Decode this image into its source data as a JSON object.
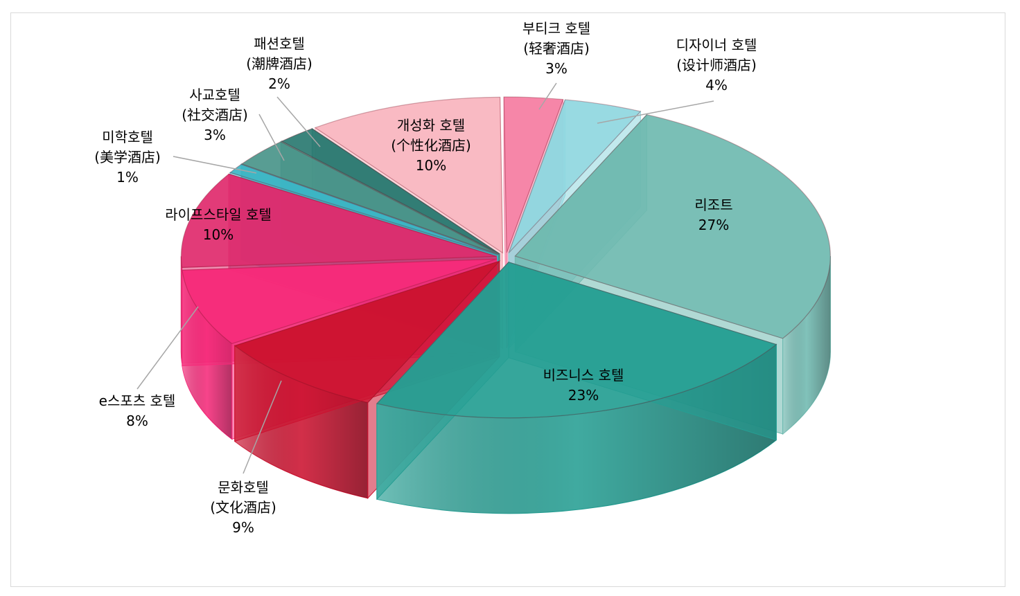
{
  "chart_data": {
    "type": "pie",
    "style": "3d-exploded",
    "title": "",
    "legend": "none",
    "slices": [
      {
        "label": "부티크 호텔",
        "sublabel": "(轻奢酒店)",
        "value": 3,
        "value_label": "3%",
        "color": "#f57ca1"
      },
      {
        "label": "디자이너 호텔",
        "sublabel": "(设计师酒店)",
        "value": 4,
        "value_label": "4%",
        "color": "#8fd7df"
      },
      {
        "label": "리조트",
        "sublabel": "",
        "value": 27,
        "value_label": "27%",
        "color": "#6fbab0"
      },
      {
        "label": "비즈니스 호텔",
        "sublabel": "",
        "value": 23,
        "value_label": "23%",
        "color": "#259e93"
      },
      {
        "label": "문화호텔",
        "sublabel": "(文化酒店)",
        "value": 9,
        "value_label": "9%",
        "color": "#cc1230"
      },
      {
        "label": "e스포츠 호텔",
        "sublabel": "",
        "value": 8,
        "value_label": "8%",
        "color": "#f62a7a"
      },
      {
        "label": "라이프스타일 호텔",
        "sublabel": "",
        "value": 10,
        "value_label": "10%",
        "color": "#e02a6c"
      },
      {
        "label": "미학호텔",
        "sublabel": "(美学酒店)",
        "value": 1,
        "value_label": "1%",
        "color": "#3cb6c6"
      },
      {
        "label": "사교호텔",
        "sublabel": "(社交酒店)",
        "value": 3,
        "value_label": "3%",
        "color": "#4a958a"
      },
      {
        "label": "패션호텔",
        "sublabel": "(潮牌酒店)",
        "value": 2,
        "value_label": "2%",
        "color": "#2a7a71"
      },
      {
        "label": "개성화 호텔",
        "sublabel": "(个性化酒店)",
        "value": 10,
        "value_label": "10%",
        "color": "#f8b4be"
      }
    ]
  }
}
